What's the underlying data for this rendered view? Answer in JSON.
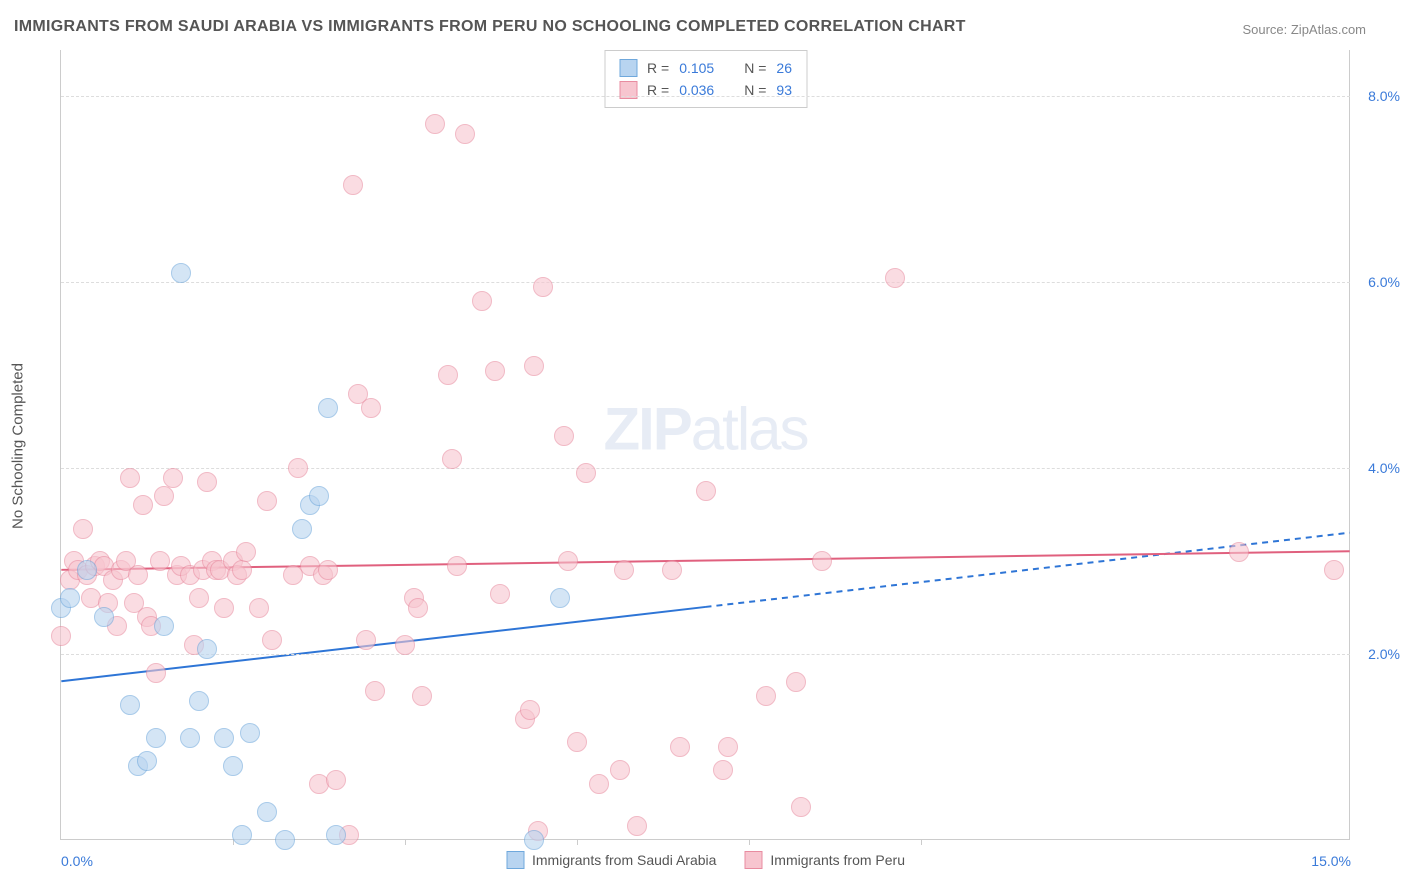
{
  "title": "IMMIGRANTS FROM SAUDI ARABIA VS IMMIGRANTS FROM PERU NO SCHOOLING COMPLETED CORRELATION CHART",
  "source_label": "Source: ZipAtlas.com",
  "y_axis_title": "No Schooling Completed",
  "watermark": "ZIPatlas",
  "chart": {
    "type": "scatter",
    "xlim": [
      0,
      15
    ],
    "ylim": [
      0,
      8.5
    ],
    "x_ticks": [
      0.0,
      15.0
    ],
    "x_tick_labels": [
      "0.0%",
      "15.0%"
    ],
    "x_minor_ticks": [
      2,
      4,
      6,
      8,
      10
    ],
    "y_ticks": [
      2.0,
      4.0,
      6.0,
      8.0
    ],
    "y_tick_labels": [
      "2.0%",
      "4.0%",
      "6.0%",
      "8.0%"
    ],
    "background_color": "#ffffff",
    "grid_color": "#dddddd",
    "axis_color": "#cccccc",
    "label_color": "#3a7ad9",
    "title_color": "#555555",
    "title_fontsize": 16,
    "label_fontsize": 14
  },
  "series": [
    {
      "name": "Immigrants from Saudi Arabia",
      "color_fill": "#b8d4f0",
      "color_stroke": "#6fa8dc",
      "marker_radius": 10,
      "fill_opacity": 0.6,
      "R": "0.105",
      "N": "26",
      "trend": {
        "x1": 0,
        "y1": 1.7,
        "x2": 15,
        "y2": 3.3,
        "solid_until_x": 7.5,
        "color": "#2e75d6",
        "width": 2
      },
      "points": [
        [
          0.0,
          2.5
        ],
        [
          0.1,
          2.6
        ],
        [
          0.3,
          2.9
        ],
        [
          0.5,
          2.4
        ],
        [
          0.8,
          1.45
        ],
        [
          0.9,
          0.8
        ],
        [
          1.0,
          0.85
        ],
        [
          1.1,
          1.1
        ],
        [
          1.2,
          2.3
        ],
        [
          1.4,
          6.1
        ],
        [
          1.5,
          1.1
        ],
        [
          1.6,
          1.5
        ],
        [
          1.7,
          2.05
        ],
        [
          1.9,
          1.1
        ],
        [
          2.0,
          0.8
        ],
        [
          2.1,
          0.05
        ],
        [
          2.2,
          1.15
        ],
        [
          2.4,
          0.3
        ],
        [
          2.6,
          0.0
        ],
        [
          2.8,
          3.35
        ],
        [
          2.9,
          3.6
        ],
        [
          3.0,
          3.7
        ],
        [
          3.1,
          4.65
        ],
        [
          3.2,
          0.05
        ],
        [
          5.5,
          0.0
        ],
        [
          5.8,
          2.6
        ]
      ]
    },
    {
      "name": "Immigrants from Peru",
      "color_fill": "#f7c5cf",
      "color_stroke": "#e88ca0",
      "marker_radius": 10,
      "fill_opacity": 0.6,
      "R": "0.036",
      "N": "93",
      "trend": {
        "x1": 0,
        "y1": 2.9,
        "x2": 15,
        "y2": 3.1,
        "solid_until_x": 15,
        "color": "#e0607e",
        "width": 2
      },
      "points": [
        [
          0.0,
          2.2
        ],
        [
          0.1,
          2.8
        ],
        [
          0.15,
          3.0
        ],
        [
          0.2,
          2.9
        ],
        [
          0.25,
          3.35
        ],
        [
          0.3,
          2.85
        ],
        [
          0.35,
          2.6
        ],
        [
          0.4,
          2.95
        ],
        [
          0.45,
          3.0
        ],
        [
          0.5,
          2.95
        ],
        [
          0.55,
          2.55
        ],
        [
          0.6,
          2.8
        ],
        [
          0.65,
          2.3
        ],
        [
          0.7,
          2.9
        ],
        [
          0.75,
          3.0
        ],
        [
          0.8,
          3.9
        ],
        [
          0.85,
          2.55
        ],
        [
          0.9,
          2.85
        ],
        [
          0.95,
          3.6
        ],
        [
          1.0,
          2.4
        ],
        [
          1.05,
          2.3
        ],
        [
          1.1,
          1.8
        ],
        [
          1.15,
          3.0
        ],
        [
          1.2,
          3.7
        ],
        [
          1.3,
          3.9
        ],
        [
          1.35,
          2.85
        ],
        [
          1.4,
          2.95
        ],
        [
          1.5,
          2.85
        ],
        [
          1.55,
          2.1
        ],
        [
          1.6,
          2.6
        ],
        [
          1.65,
          2.9
        ],
        [
          1.7,
          3.85
        ],
        [
          1.75,
          3.0
        ],
        [
          1.8,
          2.9
        ],
        [
          1.85,
          2.9
        ],
        [
          1.9,
          2.5
        ],
        [
          2.0,
          3.0
        ],
        [
          2.05,
          2.85
        ],
        [
          2.1,
          2.9
        ],
        [
          2.15,
          3.1
        ],
        [
          2.3,
          2.5
        ],
        [
          2.4,
          3.65
        ],
        [
          2.45,
          2.15
        ],
        [
          2.7,
          2.85
        ],
        [
          2.75,
          4.0
        ],
        [
          2.9,
          2.95
        ],
        [
          3.0,
          0.6
        ],
        [
          3.05,
          2.85
        ],
        [
          3.1,
          2.9
        ],
        [
          3.2,
          0.65
        ],
        [
          3.35,
          0.05
        ],
        [
          3.4,
          7.05
        ],
        [
          3.45,
          4.8
        ],
        [
          3.55,
          2.15
        ],
        [
          3.6,
          4.65
        ],
        [
          3.65,
          1.6
        ],
        [
          4.0,
          2.1
        ],
        [
          4.1,
          2.6
        ],
        [
          4.15,
          2.5
        ],
        [
          4.2,
          1.55
        ],
        [
          4.35,
          7.7
        ],
        [
          4.5,
          5.0
        ],
        [
          4.55,
          4.1
        ],
        [
          4.6,
          2.95
        ],
        [
          4.7,
          7.6
        ],
        [
          4.9,
          5.8
        ],
        [
          5.05,
          5.05
        ],
        [
          5.1,
          2.65
        ],
        [
          5.4,
          1.3
        ],
        [
          5.45,
          1.4
        ],
        [
          5.5,
          5.1
        ],
        [
          5.55,
          0.1
        ],
        [
          5.6,
          5.95
        ],
        [
          5.85,
          4.35
        ],
        [
          5.9,
          3.0
        ],
        [
          6.0,
          1.05
        ],
        [
          6.1,
          3.95
        ],
        [
          6.25,
          0.6
        ],
        [
          6.5,
          0.75
        ],
        [
          6.55,
          2.9
        ],
        [
          6.7,
          0.15
        ],
        [
          7.1,
          2.9
        ],
        [
          7.2,
          1.0
        ],
        [
          7.5,
          3.75
        ],
        [
          7.7,
          0.75
        ],
        [
          7.75,
          1.0
        ],
        [
          8.2,
          1.55
        ],
        [
          8.55,
          1.7
        ],
        [
          8.6,
          0.35
        ],
        [
          8.85,
          3.0
        ],
        [
          9.7,
          6.05
        ],
        [
          13.7,
          3.1
        ],
        [
          14.8,
          2.9
        ]
      ]
    }
  ],
  "legend_top_labels": {
    "R_label": "R =",
    "N_label": "N ="
  },
  "legend_bottom": [
    {
      "label": "Immigrants from Saudi Arabia",
      "fill": "#b8d4f0",
      "stroke": "#6fa8dc"
    },
    {
      "label": "Immigrants from Peru",
      "fill": "#f7c5cf",
      "stroke": "#e88ca0"
    }
  ]
}
